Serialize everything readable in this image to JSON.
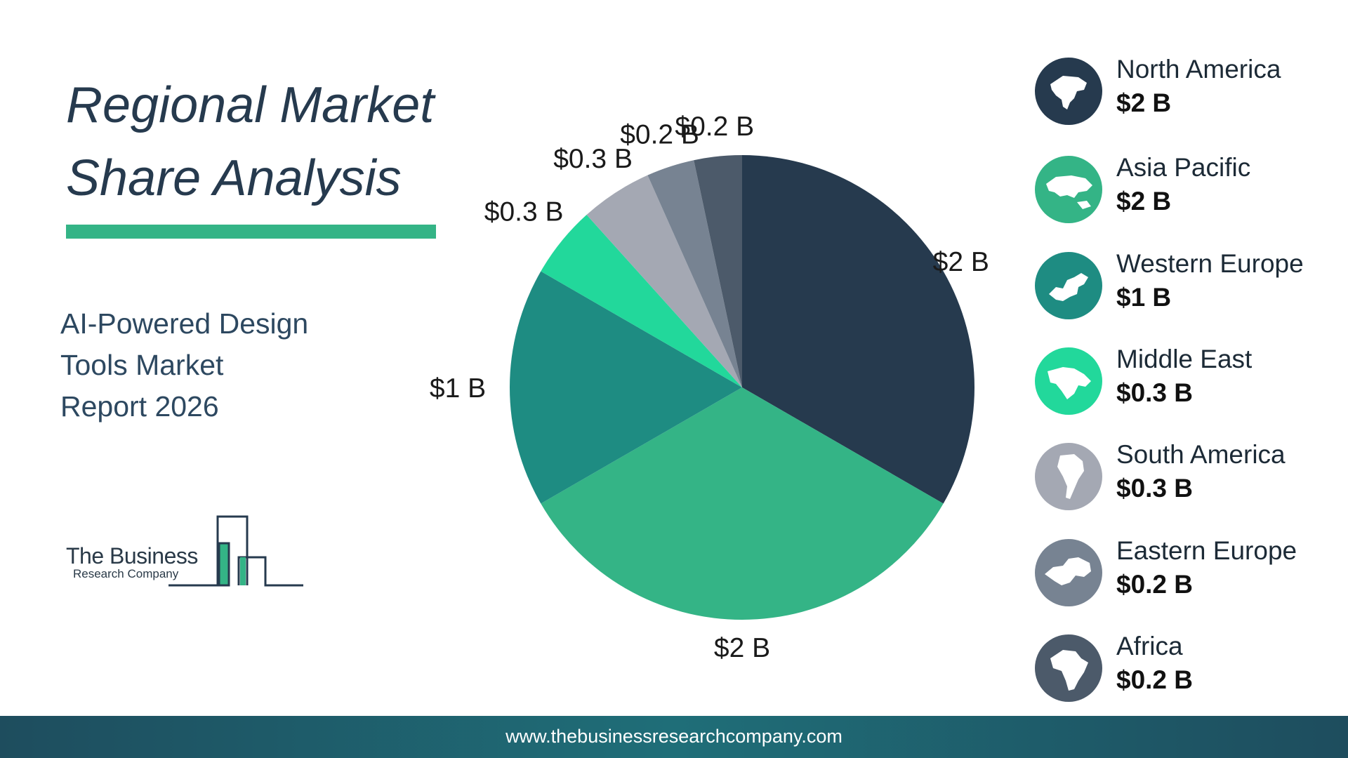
{
  "header": {
    "title_line1": "Regional Market",
    "title_line2": "Share Analysis",
    "subtitle_line1": "AI-Powered Design",
    "subtitle_line2": "Tools Market",
    "subtitle_line3": "Report 2026"
  },
  "logo": {
    "line1": "The Business",
    "line2": "Research Company"
  },
  "colors": {
    "navy": "#263a4e",
    "green": "#34b486",
    "teal": "#1e8c82",
    "mint": "#22d89b",
    "light_gray": "#a4a8b3",
    "slate": "#778392",
    "dark_slate": "#4c5a6a"
  },
  "chart_data": {
    "type": "pie",
    "title": "Regional Market Share Analysis",
    "unit": "$ B",
    "start_angle": "top, clockwise",
    "slices": [
      {
        "name": "North America",
        "value": 2,
        "label": "$2 B",
        "color": "#263a4e",
        "icon": "north-america-map-icon"
      },
      {
        "name": "Asia Pacific",
        "value": 2,
        "label": "$2 B",
        "color": "#34b486",
        "icon": "asia-pacific-map-icon"
      },
      {
        "name": "Western Europe",
        "value": 1,
        "label": "$1 B",
        "color": "#1e8c82",
        "icon": "western-europe-map-icon"
      },
      {
        "name": "Middle East",
        "value": 0.3,
        "label": "$0.3 B",
        "color": "#22d89b",
        "icon": "middle-east-map-icon"
      },
      {
        "name": "South America",
        "value": 0.3,
        "label": "$0.3 B",
        "color": "#a4a8b3",
        "icon": "south-america-map-icon"
      },
      {
        "name": "Eastern Europe",
        "value": 0.2,
        "label": "$0.2 B",
        "color": "#778392",
        "icon": "eastern-europe-map-icon"
      },
      {
        "name": "Africa",
        "value": 0.2,
        "label": "$0.2 B",
        "color": "#4c5a6a",
        "icon": "africa-map-icon"
      }
    ]
  },
  "footer": {
    "url": "www.thebusinessresearchcompany.com"
  }
}
